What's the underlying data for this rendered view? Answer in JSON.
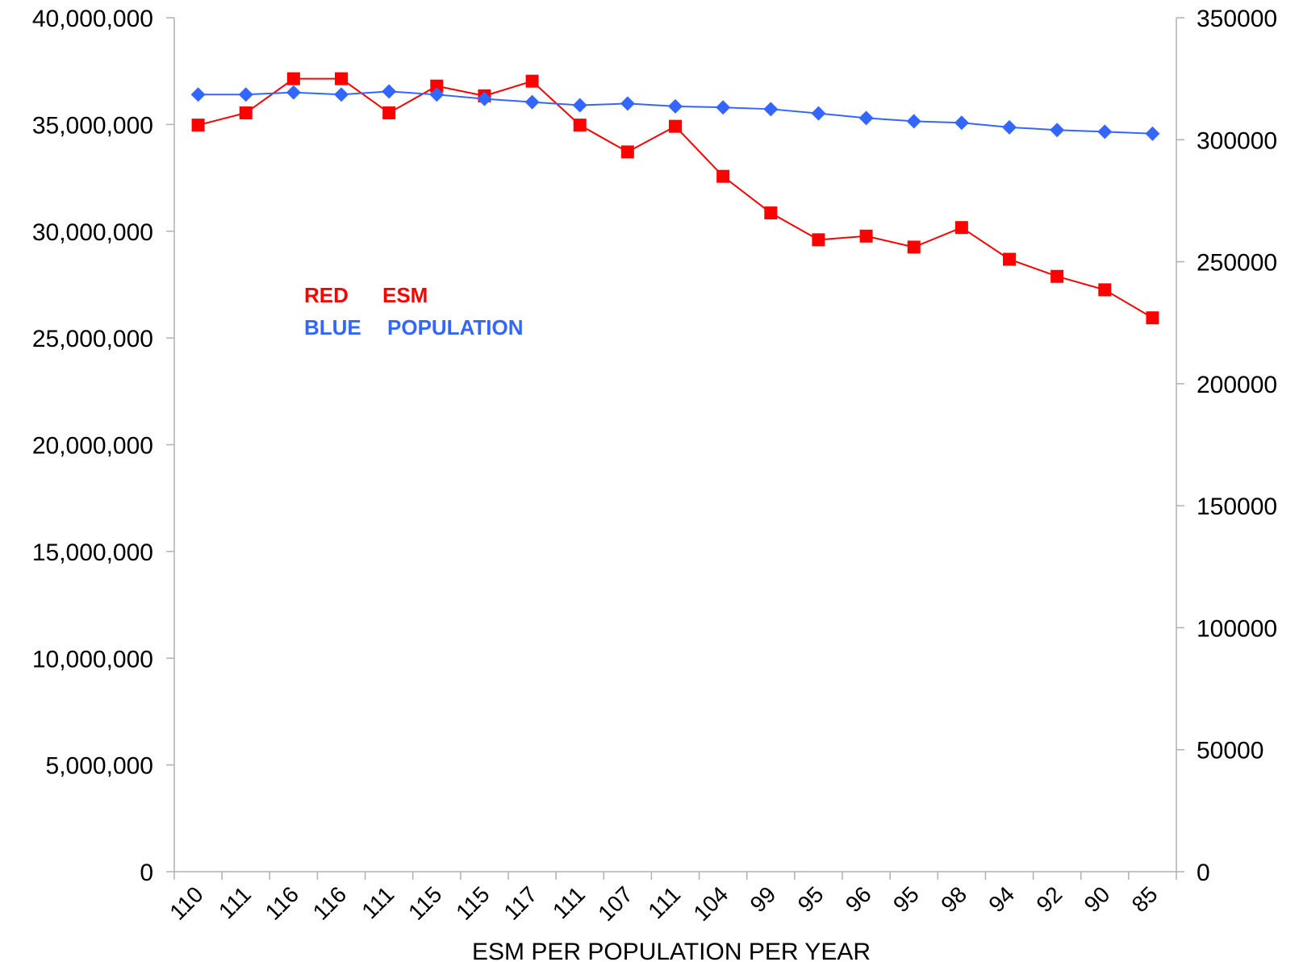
{
  "chart_data": {
    "type": "line",
    "xlabel": "ESM PER POPULATION PER YEAR",
    "categories": [
      "110",
      "111",
      "116",
      "116",
      "111",
      "115",
      "115",
      "117",
      "111",
      "107",
      "111",
      "104",
      "99",
      "95",
      "96",
      "95",
      "98",
      "94",
      "92",
      "90",
      "85"
    ],
    "y_left": {
      "ylim": [
        0,
        40000000
      ],
      "ticks": [
        0,
        5000000,
        10000000,
        15000000,
        20000000,
        25000000,
        30000000,
        35000000,
        40000000
      ],
      "tick_labels": [
        "0",
        "5,000,000",
        "10,000,000",
        "15,000,000",
        "20,000,000",
        "25,000,000",
        "30,000,000",
        "35,000,000",
        "40,000,000"
      ]
    },
    "y_right": {
      "ylim": [
        0,
        350000
      ],
      "ticks": [
        0,
        50000,
        100000,
        150000,
        200000,
        250000,
        300000,
        350000
      ],
      "tick_labels": [
        "0",
        "50000",
        "100000",
        "150000",
        "200000",
        "250000",
        "300000",
        "350000"
      ]
    },
    "series": [
      {
        "axis": "right",
        "color": "#ff0000",
        "marker": "square",
        "values": [
          306000,
          311000,
          325000,
          325000,
          311000,
          322000,
          318000,
          324000,
          306000,
          295000,
          305500,
          285000,
          270000,
          259000,
          260500,
          256000,
          264000,
          251000,
          244000,
          238500,
          227000
        ]
      },
      {
        "axis": "left",
        "color": "#3366ff",
        "marker": "diamond",
        "values": [
          36400000,
          36400000,
          36500000,
          36400000,
          36550000,
          36400000,
          36200000,
          36050000,
          35900000,
          35980000,
          35850000,
          35800000,
          35720000,
          35520000,
          35300000,
          35150000,
          35080000,
          34870000,
          34740000,
          34660000,
          34570000
        ]
      }
    ],
    "legend": {
      "placement": "upper-left inside plot",
      "rows": [
        {
          "key": "RED",
          "label": "ESM",
          "color": "#ff0000"
        },
        {
          "key": "BLUE",
          "label": "POPULATION",
          "color": "#3366ff"
        }
      ]
    },
    "grid": false
  }
}
